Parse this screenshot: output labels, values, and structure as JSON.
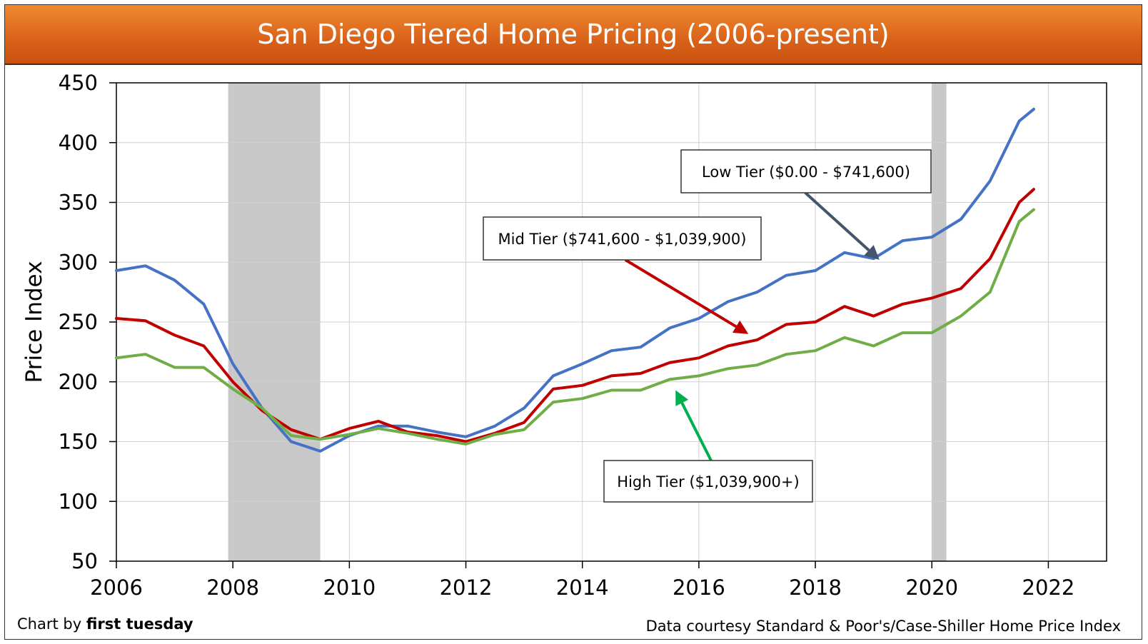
{
  "chart_data": {
    "type": "line",
    "title": "San Diego Tiered Home Pricing (2006-present)",
    "xlabel": "",
    "ylabel": "Price Index",
    "xlim": [
      2006,
      2023
    ],
    "ylim": [
      50,
      450
    ],
    "x_ticks": [
      2006,
      2008,
      2010,
      2012,
      2014,
      2016,
      2018,
      2020,
      2022
    ],
    "y_ticks": [
      50,
      100,
      150,
      200,
      250,
      300,
      350,
      400,
      450
    ],
    "grid": true,
    "shaded_periods": [
      [
        2007.92,
        2009.5
      ],
      [
        2020.0,
        2020.25
      ]
    ],
    "x": [
      2006.0,
      2006.5,
      2007.0,
      2007.5,
      2008.0,
      2008.5,
      2009.0,
      2009.5,
      2010.0,
      2010.5,
      2011.0,
      2011.5,
      2012.0,
      2012.5,
      2013.0,
      2013.5,
      2014.0,
      2014.5,
      2015.0,
      2015.5,
      2016.0,
      2016.5,
      2017.0,
      2017.5,
      2018.0,
      2018.5,
      2019.0,
      2019.5,
      2020.0,
      2020.5,
      2021.0,
      2021.5,
      2021.75
    ],
    "series": [
      {
        "name": "Low Tier ($0.00 - $741,600)",
        "color": "#4472c4",
        "values": [
          293,
          297,
          285,
          265,
          215,
          178,
          150,
          142,
          155,
          163,
          163,
          158,
          154,
          163,
          178,
          205,
          215,
          226,
          229,
          245,
          253,
          267,
          275,
          289,
          293,
          308,
          303,
          318,
          321,
          336,
          368,
          418,
          428
        ]
      },
      {
        "name": "Mid Tier ($741,600 - $1,039,900)",
        "color": "#c00000",
        "values": [
          253,
          251,
          239,
          230,
          200,
          176,
          160,
          152,
          161,
          167,
          158,
          155,
          150,
          157,
          166,
          194,
          197,
          205,
          207,
          216,
          220,
          230,
          235,
          248,
          250,
          263,
          255,
          265,
          270,
          278,
          303,
          350,
          361
        ]
      },
      {
        "name": "High Tier ($1,039,900+)",
        "color": "#70ad47",
        "values": [
          220,
          223,
          212,
          212,
          194,
          178,
          155,
          152,
          156,
          161,
          157,
          152,
          148,
          156,
          160,
          183,
          186,
          193,
          193,
          202,
          205,
          211,
          214,
          223,
          226,
          237,
          230,
          241,
          241,
          255,
          275,
          334,
          344
        ]
      }
    ],
    "annotations": [
      {
        "text": "Low Tier ($0.00 - $741,600)",
        "arrow_to": [
          2019.1,
          302
        ]
      },
      {
        "text": "Mid Tier ($741,600 - $1,039,900)",
        "arrow_to": [
          2016.85,
          240
        ]
      },
      {
        "text": "High Tier ($1,039,900+)",
        "arrow_to": [
          2015.6,
          193
        ]
      }
    ]
  },
  "footer": {
    "credit_prefix": "Chart by ",
    "credit_brand": "first tuesday",
    "source": "Data courtesy Standard & Poor's/Case-Shiller Home Price Index"
  }
}
